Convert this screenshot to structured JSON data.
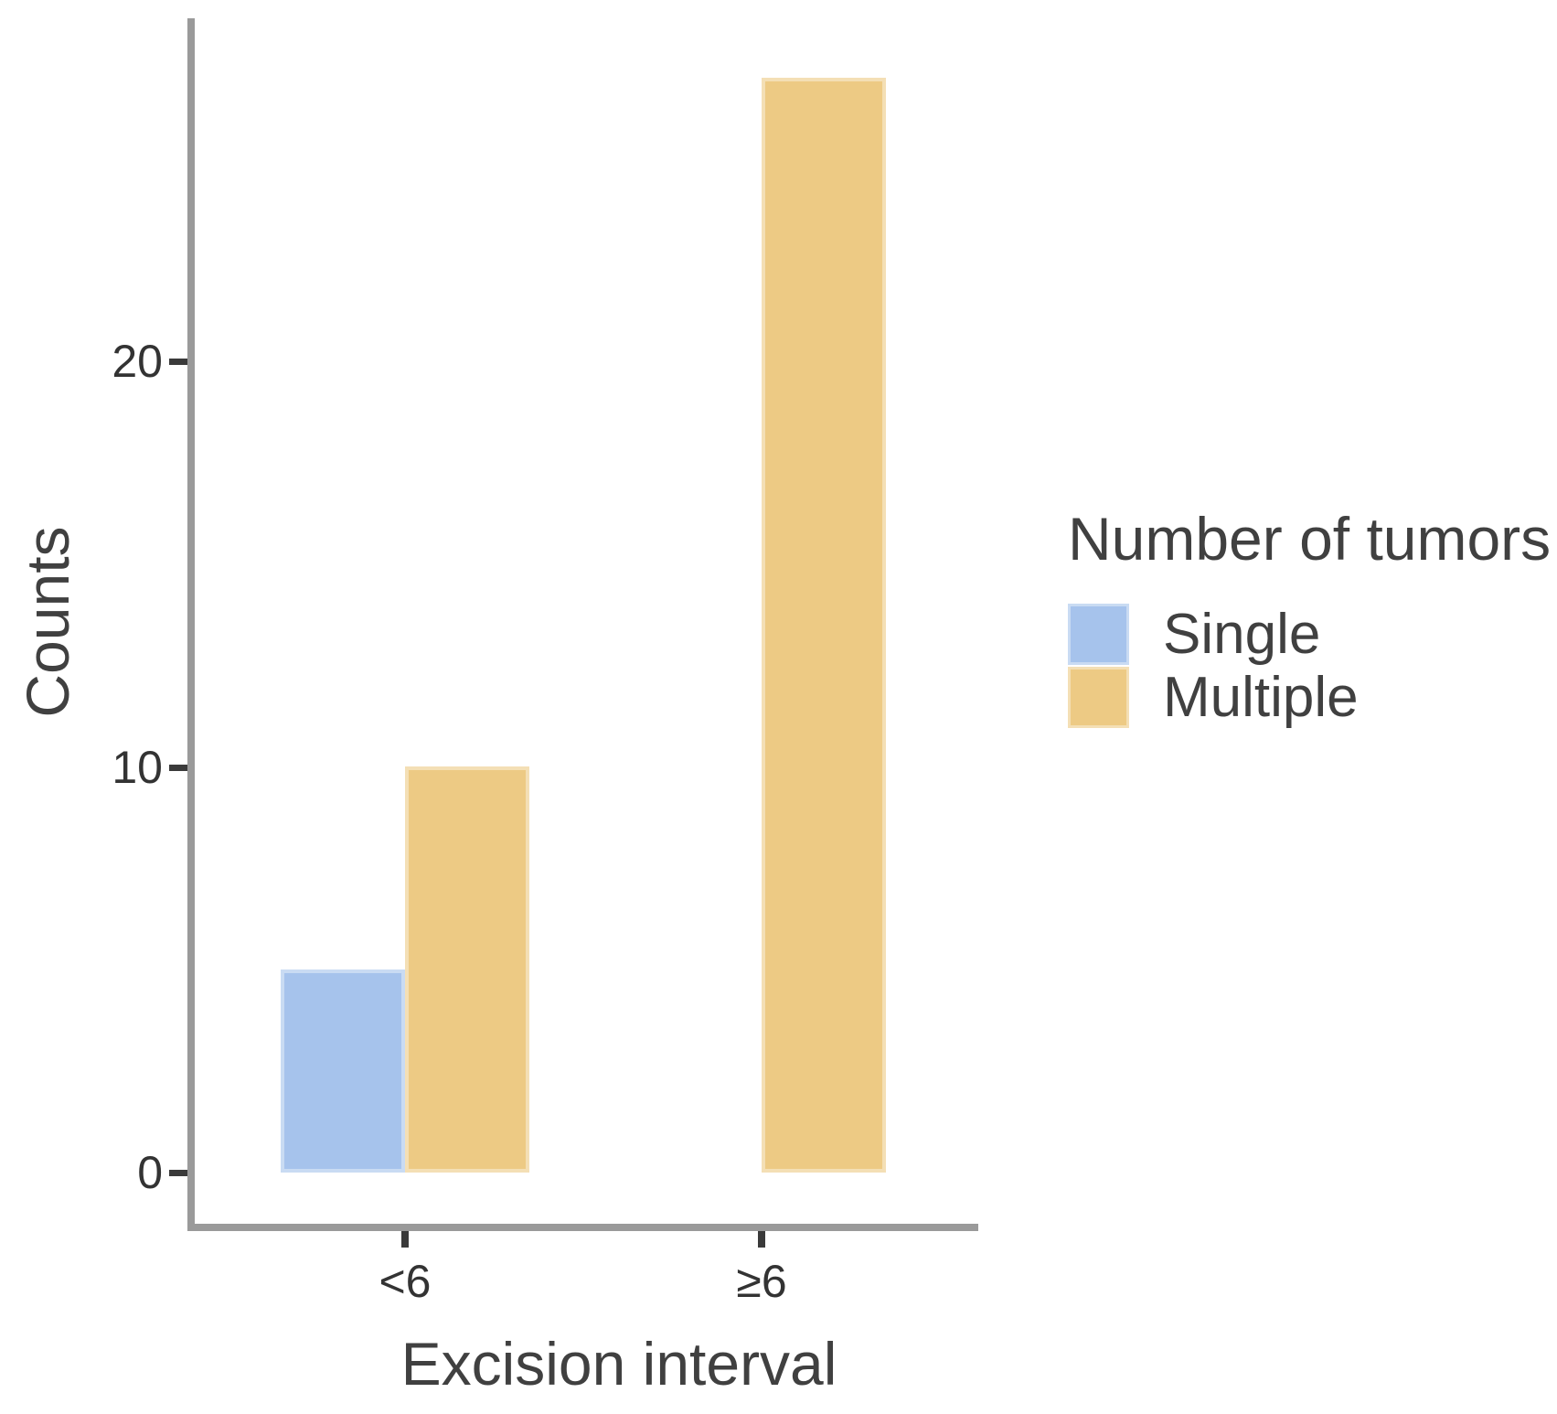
{
  "figure": {
    "background": "#ffffff"
  },
  "chart_data": {
    "type": "bar",
    "grouping": "dodged",
    "categories": [
      "<6",
      "≥6"
    ],
    "series": [
      {
        "name": "Single",
        "color": "#a6c3ec",
        "values": [
          5,
          0
        ]
      },
      {
        "name": "Multiple",
        "color": "#edca84",
        "values": [
          10,
          27
        ]
      }
    ],
    "title": "",
    "xlabel": "Excision interval",
    "ylabel": "Counts",
    "yticks": [
      0,
      10,
      20
    ],
    "ylim": [
      0,
      28.5
    ],
    "grid": false,
    "legend": {
      "title": "Number of tumors",
      "position": "right"
    },
    "axis_color": "#9a9a9a",
    "tick_color": "#3a3a3a",
    "text_color": "#404040"
  }
}
